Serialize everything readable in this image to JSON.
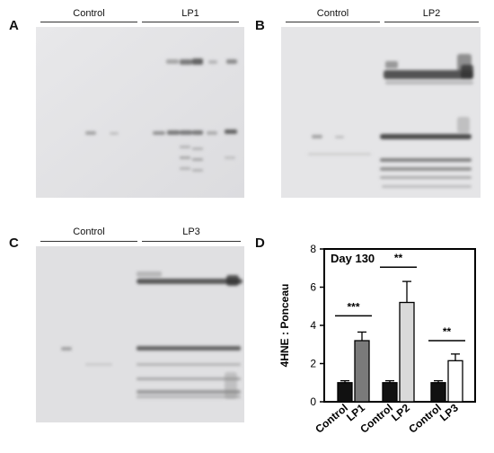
{
  "panels": {
    "A": {
      "letter": "A",
      "group1": "Control",
      "group2": "LP1"
    },
    "B": {
      "letter": "B",
      "group1": "Control",
      "group2": "LP2"
    },
    "C": {
      "letter": "C",
      "group1": "Control",
      "group2": "LP3"
    },
    "D": {
      "letter": "D"
    }
  },
  "chart_data": {
    "type": "bar",
    "title": "Day 130",
    "ylabel": "4HNE : Ponceau",
    "xlabel": "",
    "ylim": [
      0,
      8
    ],
    "yticks": [
      0,
      2,
      4,
      6,
      8
    ],
    "categories": [
      "Control",
      "LP1",
      "Control",
      "LP2",
      "Control",
      "LP3"
    ],
    "values": [
      1.0,
      3.2,
      1.0,
      5.2,
      1.0,
      2.15
    ],
    "errors": [
      0.1,
      0.45,
      0.1,
      1.1,
      0.1,
      0.35
    ],
    "bar_colors": [
      "#111111",
      "#7a7a7a",
      "#111111",
      "#d9d9d9",
      "#111111",
      "#ffffff"
    ],
    "significance": [
      {
        "label": "***",
        "y": 4.5,
        "from": 0,
        "to": 1
      },
      {
        "label": "**",
        "y": 7.05,
        "from": 2,
        "to": 3
      },
      {
        "label": "**",
        "y": 3.2,
        "from": 4,
        "to": 5
      }
    ],
    "grid": false,
    "legend": "none"
  }
}
